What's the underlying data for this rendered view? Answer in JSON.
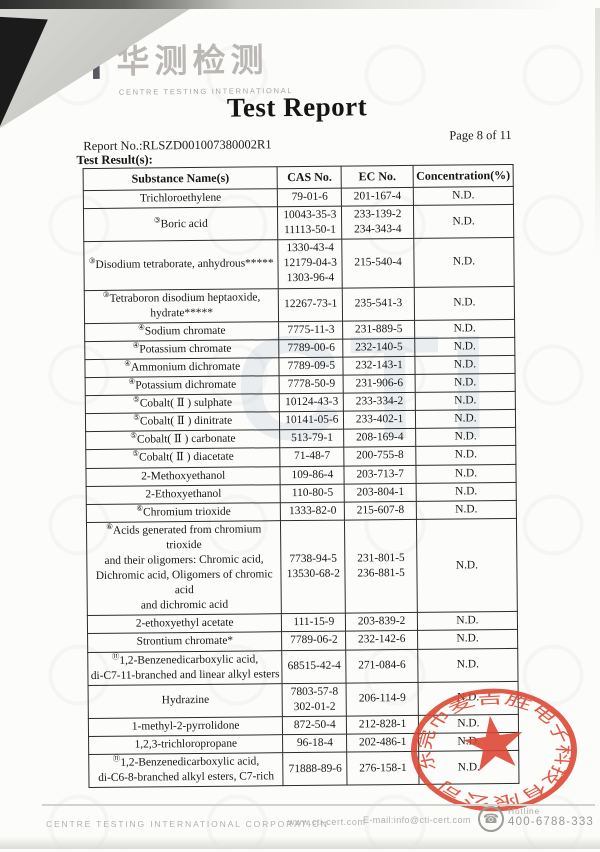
{
  "logo": {
    "cti": "CTI",
    "chinese": "华测检测",
    "subtitle": "CENTRE TESTING INTERNATIONAL"
  },
  "title": "Test Report",
  "report_no": "Report No.:RLSZD001007380002R1",
  "page_label": "Page 8 of 11",
  "section_label": "Test Result(s):",
  "watermark": "CTI",
  "table": {
    "headers": [
      "Substance Name(s)",
      "CAS No.",
      "EC No.",
      "Concentration(%)"
    ],
    "rows": [
      {
        "marker": "",
        "name_lines": [
          "Trichloroethylene"
        ],
        "cas_lines": [
          "79-01-6"
        ],
        "ec_lines": [
          "201-167-4"
        ],
        "conc": "N.D."
      },
      {
        "marker": "③",
        "name_lines": [
          "Boric acid"
        ],
        "cas_lines": [
          "10043-35-3",
          "11113-50-1"
        ],
        "ec_lines": [
          "233-139-2",
          "234-343-4"
        ],
        "conc": "N.D."
      },
      {
        "marker": "③",
        "name_lines": [
          "Disodium tetraborate, anhydrous*****"
        ],
        "cas_lines": [
          "1330-43-4",
          "12179-04-3",
          "1303-96-4"
        ],
        "ec_lines": [
          "215-540-4"
        ],
        "conc": "N.D."
      },
      {
        "marker": "③",
        "name_lines": [
          "Tetraboron disodium heptaoxide,",
          "hydrate*****"
        ],
        "cas_lines": [
          "12267-73-1"
        ],
        "ec_lines": [
          "235-541-3"
        ],
        "conc": "N.D."
      },
      {
        "marker": "④",
        "name_lines": [
          "Sodium chromate"
        ],
        "cas_lines": [
          "7775-11-3"
        ],
        "ec_lines": [
          "231-889-5"
        ],
        "conc": "N.D."
      },
      {
        "marker": "④",
        "name_lines": [
          "Potassium chromate"
        ],
        "cas_lines": [
          "7789-00-6"
        ],
        "ec_lines": [
          "232-140-5"
        ],
        "conc": "N.D."
      },
      {
        "marker": "④",
        "name_lines": [
          "Ammonium dichromate"
        ],
        "cas_lines": [
          "7789-09-5"
        ],
        "ec_lines": [
          "232-143-1"
        ],
        "conc": "N.D."
      },
      {
        "marker": "④",
        "name_lines": [
          "Potassium dichromate"
        ],
        "cas_lines": [
          "7778-50-9"
        ],
        "ec_lines": [
          "231-906-6"
        ],
        "conc": "N.D."
      },
      {
        "marker": "⑤",
        "name_lines": [
          "Cobalt( Ⅱ ) sulphate"
        ],
        "cas_lines": [
          "10124-43-3"
        ],
        "ec_lines": [
          "233-334-2"
        ],
        "conc": "N.D."
      },
      {
        "marker": "⑤",
        "name_lines": [
          "Cobalt( Ⅱ ) dinitrate"
        ],
        "cas_lines": [
          "10141-05-6"
        ],
        "ec_lines": [
          "233-402-1"
        ],
        "conc": "N.D."
      },
      {
        "marker": "⑤",
        "name_lines": [
          "Cobalt( Ⅱ ) carbonate"
        ],
        "cas_lines": [
          "513-79-1"
        ],
        "ec_lines": [
          "208-169-4"
        ],
        "conc": "N.D."
      },
      {
        "marker": "⑤",
        "name_lines": [
          "Cobalt( Ⅱ ) diacetate"
        ],
        "cas_lines": [
          "71-48-7"
        ],
        "ec_lines": [
          "200-755-8"
        ],
        "conc": "N.D."
      },
      {
        "marker": "",
        "name_lines": [
          "2-Methoxyethanol"
        ],
        "cas_lines": [
          "109-86-4"
        ],
        "ec_lines": [
          "203-713-7"
        ],
        "conc": "N.D."
      },
      {
        "marker": "",
        "name_lines": [
          "2-Ethoxyethanol"
        ],
        "cas_lines": [
          "110-80-5"
        ],
        "ec_lines": [
          "203-804-1"
        ],
        "conc": "N.D."
      },
      {
        "marker": "⑥",
        "name_lines": [
          "Chromium trioxide"
        ],
        "cas_lines": [
          "1333-82-0"
        ],
        "ec_lines": [
          "215-607-8"
        ],
        "conc": "N.D."
      },
      {
        "marker": "⑥",
        "name_lines": [
          "Acids generated from chromium trioxide",
          "and their oligomers: Chromic acid,",
          "Dichromic acid, Oligomers of chromic acid",
          "and dichromic acid"
        ],
        "cas_lines": [
          "7738-94-5",
          "13530-68-2"
        ],
        "ec_lines": [
          "231-801-5",
          "236-881-5"
        ],
        "conc": "N.D."
      },
      {
        "marker": "",
        "name_lines": [
          "2-ethoxyethyl acetate"
        ],
        "cas_lines": [
          "111-15-9"
        ],
        "ec_lines": [
          "203-839-2"
        ],
        "conc": "N.D."
      },
      {
        "marker": "",
        "name_lines": [
          "Strontium chromate*"
        ],
        "cas_lines": [
          "7789-06-2"
        ],
        "ec_lines": [
          "232-142-6"
        ],
        "conc": "N.D."
      },
      {
        "marker": "⑪",
        "name_lines": [
          "1,2-Benzenedicarboxylic acid,",
          "di-C7-11-branched and linear alkyl esters"
        ],
        "cas_lines": [
          "68515-42-4"
        ],
        "ec_lines": [
          "271-084-6"
        ],
        "conc": "N.D."
      },
      {
        "marker": "",
        "name_lines": [
          "Hydrazine"
        ],
        "cas_lines": [
          "7803-57-8",
          "302-01-2"
        ],
        "ec_lines": [
          "206-114-9"
        ],
        "conc": "N.D."
      },
      {
        "marker": "",
        "name_lines": [
          "1-methyl-2-pyrrolidone"
        ],
        "cas_lines": [
          "872-50-4"
        ],
        "ec_lines": [
          "212-828-1"
        ],
        "conc": "N.D."
      },
      {
        "marker": "",
        "name_lines": [
          "1,2,3-trichloropropane"
        ],
        "cas_lines": [
          "96-18-4"
        ],
        "ec_lines": [
          "202-486-1"
        ],
        "conc": "N.D."
      },
      {
        "marker": "⑪",
        "name_lines": [
          "1,2-Benzenedicarboxylic acid,",
          "di-C6-8-branched alkyl esters, C7-rich"
        ],
        "cas_lines": [
          "71888-89-6"
        ],
        "ec_lines": [
          "276-158-1"
        ],
        "conc": "N.D."
      }
    ]
  },
  "stamp": {
    "ring_text": "东莞市麦吉胜电子科技有限公司",
    "color": "#dc4430"
  },
  "footer": {
    "company": "CENTRE TESTING INTERNATIONAL CORPORATION",
    "website": "www.cti-cert.com",
    "email": "E-mail:info@cti-cert.com",
    "hotline_label": "Hotline",
    "hotline_number": "400-6788-333"
  }
}
